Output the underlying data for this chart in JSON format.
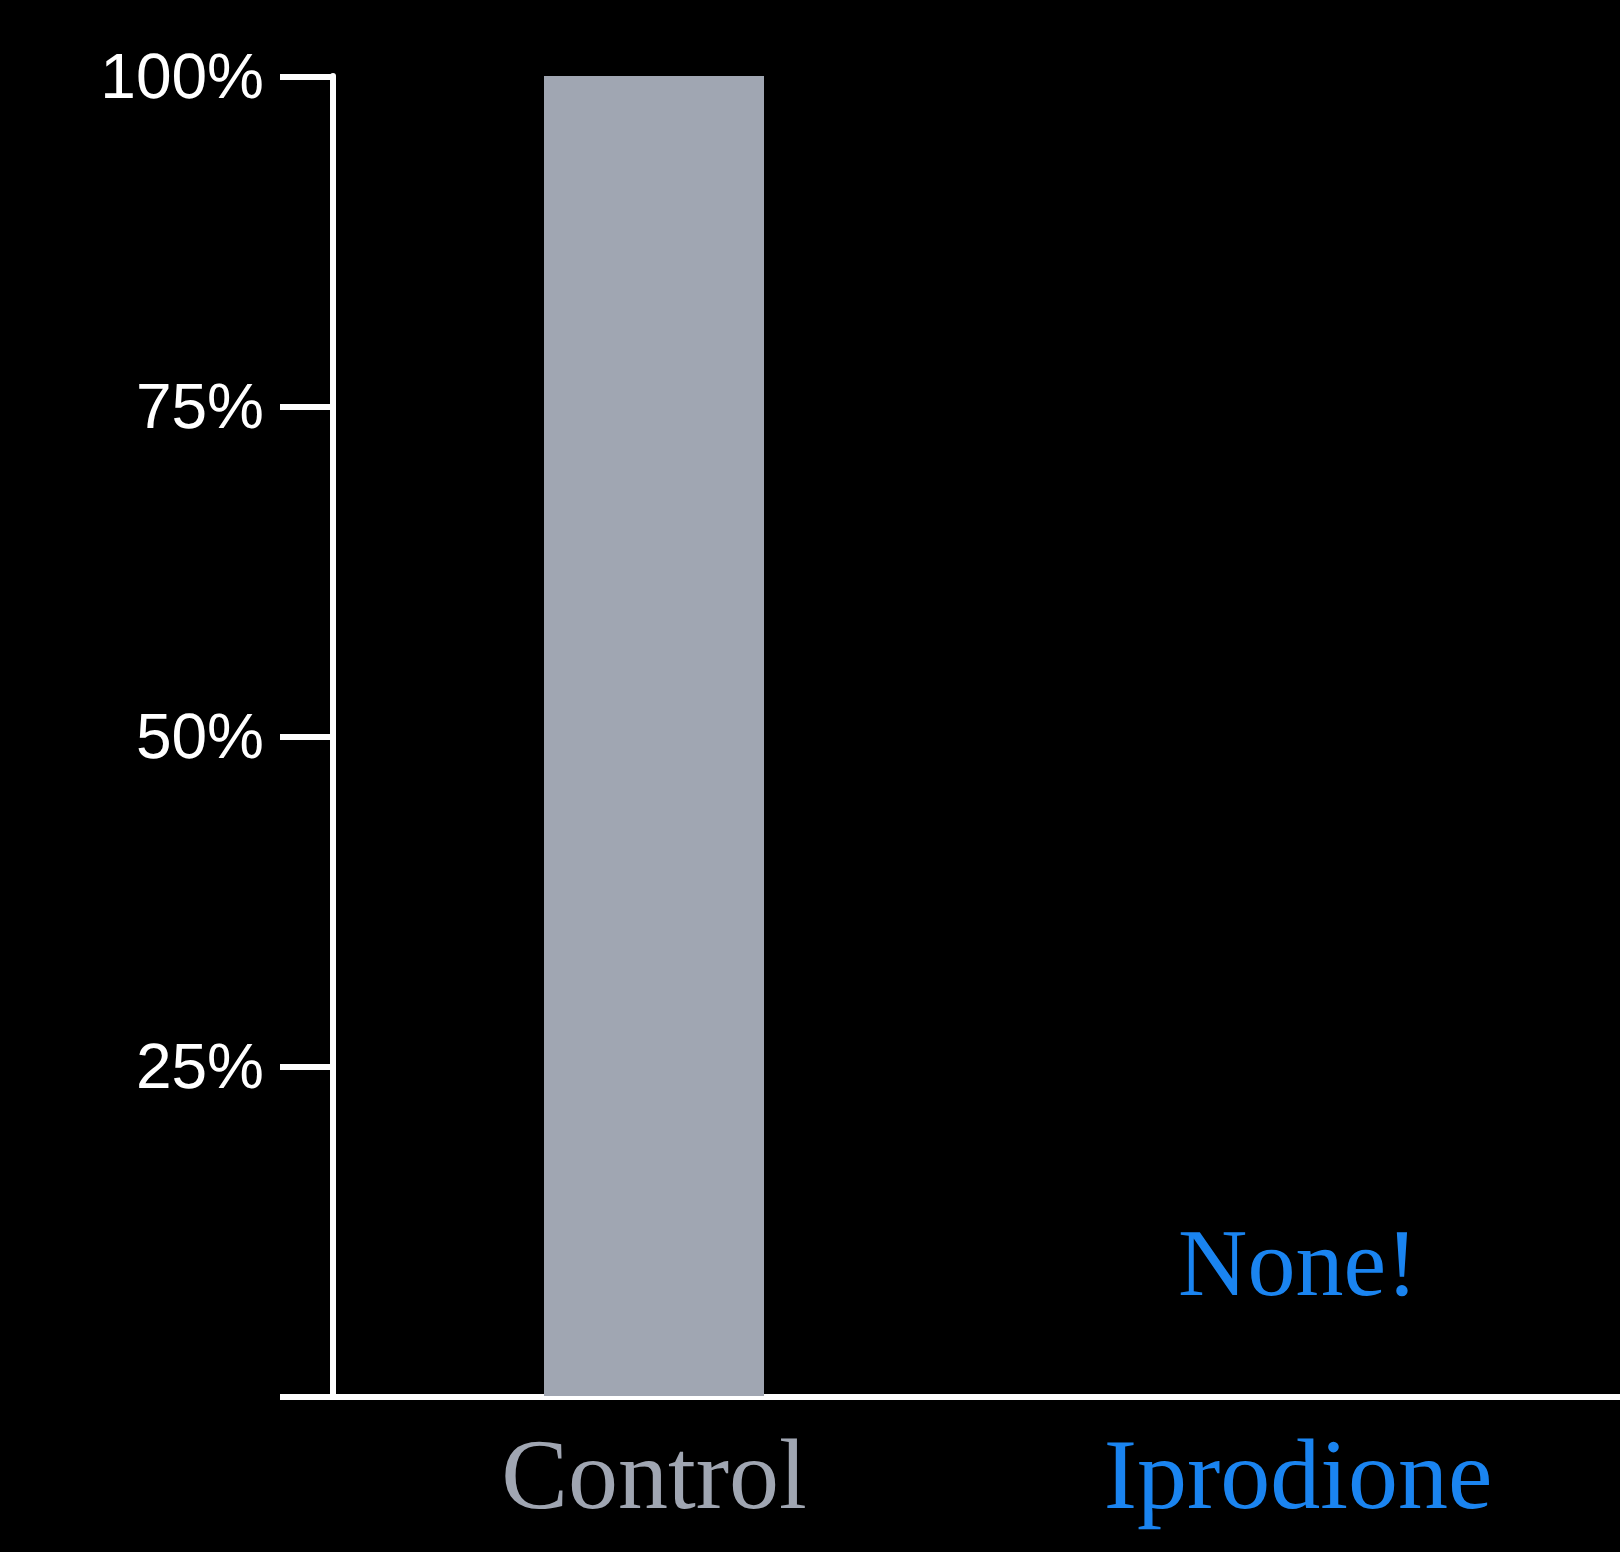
{
  "chart_data": {
    "type": "bar",
    "categories": [
      "Control",
      "Iprodione"
    ],
    "values": [
      100,
      0
    ],
    "colors": [
      "#a0a6b2",
      "#1a84f0"
    ],
    "ylim": [
      0,
      100
    ],
    "yticks": [
      {
        "value": 0,
        "label": null
      },
      {
        "value": 25,
        "label": "25%"
      },
      {
        "value": 50,
        "label": "50%"
      },
      {
        "value": 75,
        "label": "75%"
      },
      {
        "value": 100,
        "label": "100%"
      }
    ],
    "annotations": [
      "None!"
    ],
    "grid": false
  }
}
